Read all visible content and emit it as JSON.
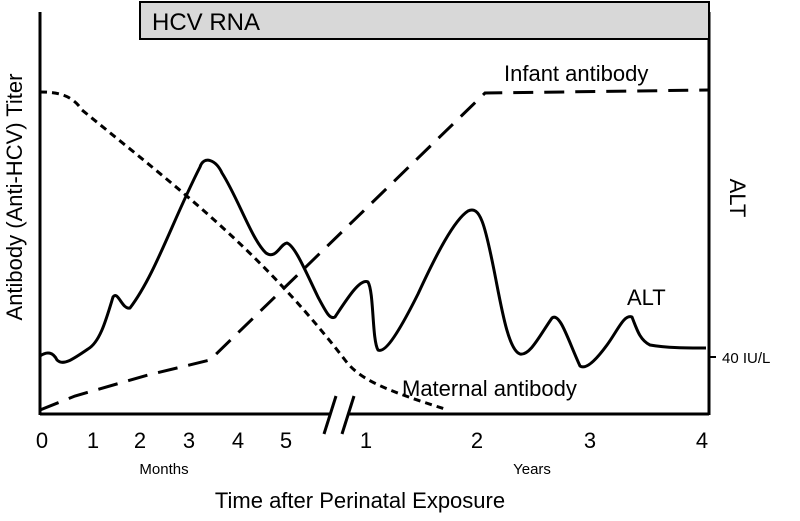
{
  "figure": {
    "hcv_rna_bar_label": "HCV RNA",
    "y_axis_left_label": "Antibody (Anti-HCV) Titer",
    "y_axis_right_label": "ALT",
    "right_axis_tick_label": "40 IU/L",
    "x_axis_label": "Time after Perinatal Exposure",
    "months_label": "Months",
    "years_label": "Years",
    "month_ticks": [
      "0",
      "1",
      "2",
      "3",
      "4",
      "5"
    ],
    "year_ticks": [
      "1",
      "2",
      "3",
      "4"
    ],
    "curve_labels": {
      "infant_antibody": "Infant antibody",
      "maternal_antibody": "Maternal antibody",
      "alt": "ALT"
    },
    "colors": {
      "bar_fill": "#d8d8d8",
      "line": "#000000",
      "background": "#ffffff"
    },
    "styles": {
      "infant_antibody": "long-dash",
      "maternal_antibody": "short-dash",
      "alt": "solid"
    }
  }
}
